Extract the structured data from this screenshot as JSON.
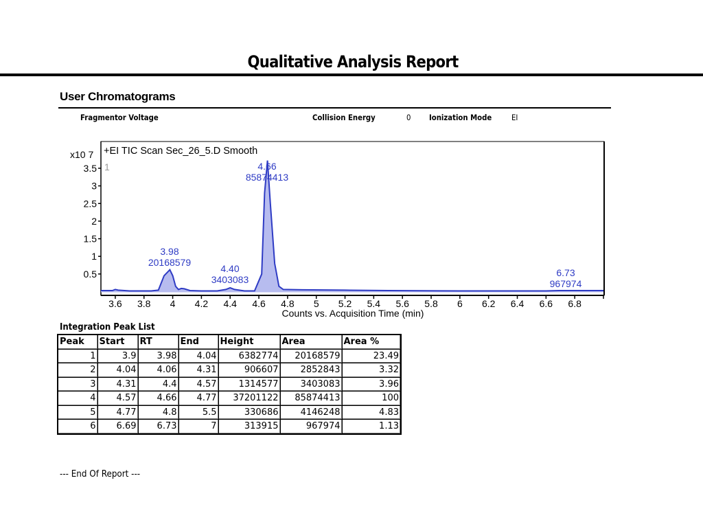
{
  "report": {
    "title": "Qualitative Analysis Report",
    "section_title": "User Chromatograms",
    "params": {
      "fragmentor_voltage_label": "Fragmentor Voltage",
      "fragmentor_voltage_value": "",
      "collision_energy_label": "Collision Energy",
      "collision_energy_value": "0",
      "ionization_mode_label": "Ionization Mode",
      "ionization_mode_value": "EI"
    },
    "end_text": "--- End Of Report ---"
  },
  "chart_data": {
    "type": "line",
    "title": "+EI TIC Scan Sec_26_5.D  Smooth",
    "panel_index": "1",
    "xlabel": "Counts vs. Acquisition Time (min)",
    "ylabel": "",
    "y_multiplier": "x10 7",
    "xlim": [
      3.5,
      7.0
    ],
    "ylim": [
      0,
      3.75
    ],
    "x_ticks": [
      "3.6",
      "3.8",
      "4",
      "4.2",
      "4.4",
      "4.6",
      "4.8",
      "5",
      "5.2",
      "5.4",
      "5.6",
      "5.8",
      "6",
      "6.2",
      "6.4",
      "6.6",
      "6.8"
    ],
    "y_ticks": [
      "0.5",
      "1",
      "1.5",
      "2",
      "2.5",
      "3",
      "3.5"
    ],
    "grid": false,
    "series_color": "#2e3bc4",
    "fill_color": "#b7bcef",
    "peak_labels": [
      {
        "rt": "3.98",
        "area": "20168579"
      },
      {
        "rt": "4.40",
        "area": "3403083"
      },
      {
        "rt": "4.66",
        "area": "85874413"
      },
      {
        "rt": "6.73",
        "area": "967974"
      }
    ],
    "trace": {
      "x": [
        3.5,
        3.58,
        3.6,
        3.62,
        3.7,
        3.85,
        3.9,
        3.94,
        3.98,
        4.0,
        4.02,
        4.04,
        4.06,
        4.08,
        4.12,
        4.2,
        4.31,
        4.37,
        4.4,
        4.43,
        4.5,
        4.57,
        4.62,
        4.64,
        4.66,
        4.68,
        4.71,
        4.74,
        4.77,
        4.9,
        5.2,
        5.5,
        6.0,
        6.6,
        6.69,
        6.73,
        6.77,
        7.0
      ],
      "y": [
        0.03,
        0.03,
        0.06,
        0.04,
        0.02,
        0.02,
        0.04,
        0.45,
        0.62,
        0.45,
        0.15,
        0.06,
        0.09,
        0.08,
        0.03,
        0.02,
        0.02,
        0.06,
        0.11,
        0.06,
        0.02,
        0.02,
        0.5,
        2.8,
        3.72,
        2.5,
        0.8,
        0.15,
        0.06,
        0.05,
        0.04,
        0.03,
        0.02,
        0.02,
        0.03,
        0.03,
        0.03,
        0.03
      ]
    }
  },
  "peak_table": {
    "title": "Integration Peak List",
    "columns": [
      "Peak",
      "Start",
      "RT",
      "End",
      "Height",
      "Area",
      "Area %"
    ],
    "rows": [
      [
        "1",
        "3.9",
        "3.98",
        "4.04",
        "6382774",
        "20168579",
        "23.49"
      ],
      [
        "2",
        "4.04",
        "4.06",
        "4.31",
        "906607",
        "2852843",
        "3.32"
      ],
      [
        "3",
        "4.31",
        "4.4",
        "4.57",
        "1314577",
        "3403083",
        "3.96"
      ],
      [
        "4",
        "4.57",
        "4.66",
        "4.77",
        "37201122",
        "85874413",
        "100"
      ],
      [
        "5",
        "4.77",
        "4.8",
        "5.5",
        "330686",
        "4146248",
        "4.83"
      ],
      [
        "6",
        "6.69",
        "6.73",
        "7",
        "313915",
        "967974",
        "1.13"
      ]
    ]
  }
}
